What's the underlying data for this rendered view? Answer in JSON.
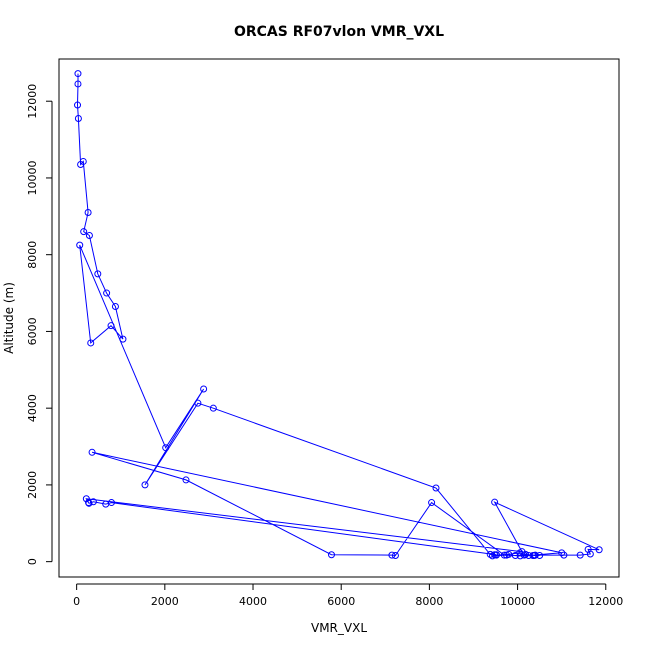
{
  "chart_data": {
    "type": "line",
    "title": "ORCAS RF07vlon VMR_VXL",
    "xlabel": "VMR_VXL",
    "ylabel": "Altitude (m)",
    "xlim": [
      -400,
      12300
    ],
    "ylim": [
      -400,
      13100
    ],
    "xticks": [
      0,
      2000,
      4000,
      6000,
      8000,
      10000,
      12000
    ],
    "yticks": [
      0,
      2000,
      4000,
      6000,
      8000,
      10000,
      12000
    ],
    "xtick_labels": [
      "0",
      "2000",
      "4000",
      "6000",
      "8000",
      "10000",
      "12000"
    ],
    "ytick_labels": [
      "0",
      "2000",
      "4000",
      "6000",
      "8000",
      "10000",
      "12000"
    ],
    "grid": false,
    "series_color": "#0000ff",
    "marker": "open-circle",
    "series": [
      {
        "x": [
          30,
          30,
          20,
          40,
          90,
          150,
          260,
          160,
          290,
          480,
          680,
          880,
          1050,
          780,
          320,
          70,
          2020,
          2880,
          1550,
          2750,
          3100,
          8150,
          9380,
          9480,
          9520,
          9800,
          10050,
          10180,
          10380,
          10500,
          10400,
          11050,
          11420,
          11650,
          11600,
          11850,
          9480,
          10100,
          220,
          270,
          280,
          380,
          660,
          790,
          9520,
          9430,
          9750,
          10060,
          10250,
          11000,
          350,
          2480,
          5780,
          7150,
          7230,
          8050,
          9700,
          9950,
          10150,
          10350
        ],
        "y": [
          12720,
          12450,
          11900,
          11550,
          10350,
          10430,
          9100,
          8600,
          8500,
          7500,
          7000,
          6650,
          5800,
          6150,
          5700,
          8250,
          2970,
          4500,
          2000,
          4130,
          4000,
          1920,
          190,
          180,
          170,
          190,
          230,
          190,
          160,
          160,
          170,
          170,
          170,
          200,
          320,
          310,
          1550,
          260,
          1640,
          1540,
          1520,
          1560,
          1500,
          1540,
          180,
          150,
          170,
          150,
          160,
          230,
          2850,
          2130,
          180,
          170,
          160,
          1540,
          170,
          160,
          170,
          160
        ]
      }
    ]
  }
}
